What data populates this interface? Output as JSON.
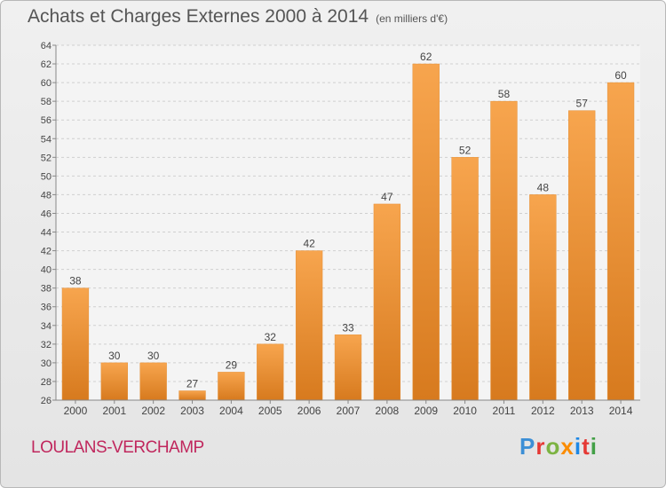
{
  "header": {
    "title": "Achats et Charges Externes 2000 à 2014",
    "subtitle": "(en milliers d'€)"
  },
  "footer": {
    "city": "LOULANS-VERCHAMP",
    "logo_letters": [
      "P",
      "r",
      "o",
      "x",
      "i",
      "t",
      "i"
    ],
    "logo_colors": [
      "#3c8fd6",
      "#e53935",
      "#7cb342",
      "#fb8c00",
      "#1e88e5",
      "#e53935",
      "#43a047"
    ]
  },
  "chart_data": {
    "type": "bar",
    "title": "Achats et Charges Externes 2000 à 2014",
    "subtitle": "(en milliers d'€)",
    "categories": [
      "2000",
      "2001",
      "2002",
      "2003",
      "2004",
      "2005",
      "2006",
      "2007",
      "2008",
      "2009",
      "2010",
      "2011",
      "2012",
      "2013",
      "2014"
    ],
    "values": [
      38,
      30,
      30,
      27,
      29,
      32,
      42,
      33,
      47,
      62,
      52,
      58,
      48,
      57,
      60
    ],
    "ylim": [
      26,
      64
    ],
    "yticks": [
      26,
      28,
      30,
      32,
      34,
      36,
      38,
      40,
      42,
      44,
      46,
      48,
      50,
      52,
      54,
      56,
      58,
      60,
      62,
      64
    ],
    "grid": true,
    "bar_color_light": "#f7a54e",
    "bar_color_dark": "#d77a1e"
  }
}
